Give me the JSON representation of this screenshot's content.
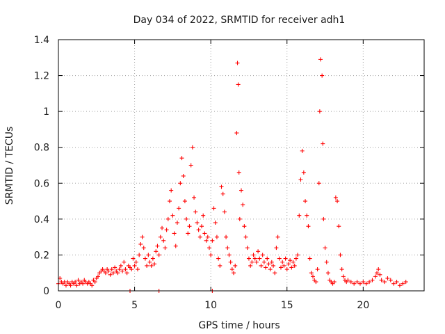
{
  "chart_data": {
    "type": "scatter",
    "title": "Day 034 of 2022, SRMTID for receiver adh1",
    "xlabel": "GPS time / hours",
    "ylabel": "SRMTID / TECUs",
    "xlim": [
      0,
      24
    ],
    "ylim": [
      0,
      1.4
    ],
    "x_ticks": [
      0,
      5,
      10,
      15,
      20
    ],
    "x_tick_labels": [
      "0",
      "5",
      "10",
      "15",
      "20"
    ],
    "y_ticks": [
      0,
      0.2,
      0.4,
      0.6,
      0.8,
      1.0,
      1.2,
      1.4
    ],
    "y_tick_labels": [
      "0",
      "0.2",
      "0.4",
      "0.6",
      "0.8",
      "1",
      "1.2",
      "1.4"
    ],
    "grid": true,
    "marker": "plus",
    "marker_color": "#ff0000",
    "series": [
      {
        "name": "SRMTID",
        "points": [
          [
            0.0,
            0.04
          ],
          [
            0.1,
            0.07
          ],
          [
            0.2,
            0.05
          ],
          [
            0.3,
            0.04
          ],
          [
            0.4,
            0.05
          ],
          [
            0.5,
            0.03
          ],
          [
            0.6,
            0.05
          ],
          [
            0.7,
            0.04
          ],
          [
            0.8,
            0.03
          ],
          [
            0.9,
            0.05
          ],
          [
            1.0,
            0.04
          ],
          [
            1.1,
            0.05
          ],
          [
            1.2,
            0.03
          ],
          [
            1.3,
            0.06
          ],
          [
            1.4,
            0.04
          ],
          [
            1.5,
            0.05
          ],
          [
            1.6,
            0.04
          ],
          [
            1.7,
            0.06
          ],
          [
            1.8,
            0.05
          ],
          [
            1.9,
            0.04
          ],
          [
            2.0,
            0.05
          ],
          [
            2.1,
            0.04
          ],
          [
            2.2,
            0.03
          ],
          [
            2.3,
            0.06
          ],
          [
            2.4,
            0.05
          ],
          [
            2.5,
            0.07
          ],
          [
            2.6,
            0.08
          ],
          [
            2.7,
            0.1
          ],
          [
            2.8,
            0.11
          ],
          [
            2.9,
            0.12
          ],
          [
            3.0,
            0.11
          ],
          [
            3.1,
            0.1
          ],
          [
            3.2,
            0.12
          ],
          [
            3.3,
            0.11
          ],
          [
            3.4,
            0.09
          ],
          [
            3.5,
            0.12
          ],
          [
            3.6,
            0.1
          ],
          [
            3.7,
            0.13
          ],
          [
            3.8,
            0.11
          ],
          [
            3.9,
            0.1
          ],
          [
            4.0,
            0.12
          ],
          [
            4.1,
            0.14
          ],
          [
            4.2,
            0.11
          ],
          [
            4.3,
            0.16
          ],
          [
            4.4,
            0.12
          ],
          [
            4.5,
            0.1
          ],
          [
            4.6,
            0.14
          ],
          [
            4.7,
            0.13
          ],
          [
            4.8,
            0.12
          ],
          [
            4.9,
            0.18
          ],
          [
            5.0,
            0.14
          ],
          [
            5.1,
            0.16
          ],
          [
            5.2,
            0.12
          ],
          [
            5.3,
            0.2
          ],
          [
            5.4,
            0.26
          ],
          [
            5.5,
            0.3
          ],
          [
            5.6,
            0.24
          ],
          [
            5.7,
            0.18
          ],
          [
            5.8,
            0.14
          ],
          [
            5.9,
            0.2
          ],
          [
            6.0,
            0.16
          ],
          [
            6.1,
            0.14
          ],
          [
            6.2,
            0.18
          ],
          [
            6.3,
            0.15
          ],
          [
            6.4,
            0.22
          ],
          [
            6.5,
            0.25
          ],
          [
            6.6,
            0.2
          ],
          [
            6.7,
            0.3
          ],
          [
            6.8,
            0.35
          ],
          [
            6.9,
            0.28
          ],
          [
            7.0,
            0.24
          ],
          [
            7.1,
            0.34
          ],
          [
            7.2,
            0.4
          ],
          [
            7.3,
            0.5
          ],
          [
            7.4,
            0.56
          ],
          [
            7.5,
            0.42
          ],
          [
            7.6,
            0.32
          ],
          [
            7.7,
            0.25
          ],
          [
            7.8,
            0.38
          ],
          [
            7.9,
            0.46
          ],
          [
            8.0,
            0.6
          ],
          [
            8.1,
            0.74
          ],
          [
            8.2,
            0.64
          ],
          [
            8.3,
            0.5
          ],
          [
            8.4,
            0.4
          ],
          [
            8.5,
            0.32
          ],
          [
            8.6,
            0.36
          ],
          [
            8.7,
            0.7
          ],
          [
            8.8,
            0.8
          ],
          [
            8.9,
            0.52
          ],
          [
            9.0,
            0.44
          ],
          [
            9.1,
            0.38
          ],
          [
            9.2,
            0.34
          ],
          [
            9.3,
            0.3
          ],
          [
            9.4,
            0.36
          ],
          [
            9.5,
            0.42
          ],
          [
            9.6,
            0.32
          ],
          [
            9.7,
            0.28
          ],
          [
            9.8,
            0.3
          ],
          [
            9.9,
            0.24
          ],
          [
            10.0,
            0.2
          ],
          [
            10.1,
            0.28
          ],
          [
            10.2,
            0.46
          ],
          [
            10.3,
            0.38
          ],
          [
            10.4,
            0.3
          ],
          [
            10.5,
            0.18
          ],
          [
            10.6,
            0.14
          ],
          [
            10.7,
            0.58
          ],
          [
            10.8,
            0.54
          ],
          [
            10.9,
            0.44
          ],
          [
            11.0,
            0.3
          ],
          [
            11.1,
            0.24
          ],
          [
            11.2,
            0.2
          ],
          [
            11.3,
            0.16
          ],
          [
            11.4,
            0.12
          ],
          [
            11.5,
            0.1
          ],
          [
            11.6,
            0.14
          ],
          [
            11.7,
            0.88
          ],
          [
            11.75,
            1.27
          ],
          [
            11.8,
            1.15
          ],
          [
            11.85,
            0.66
          ],
          [
            11.9,
            0.4
          ],
          [
            12.0,
            0.56
          ],
          [
            12.1,
            0.48
          ],
          [
            12.2,
            0.36
          ],
          [
            12.3,
            0.3
          ],
          [
            12.4,
            0.24
          ],
          [
            12.5,
            0.18
          ],
          [
            12.6,
            0.14
          ],
          [
            12.7,
            0.16
          ],
          [
            12.8,
            0.2
          ],
          [
            12.9,
            0.18
          ],
          [
            13.0,
            0.16
          ],
          [
            13.1,
            0.22
          ],
          [
            13.2,
            0.18
          ],
          [
            13.3,
            0.14
          ],
          [
            13.4,
            0.2
          ],
          [
            13.5,
            0.16
          ],
          [
            13.6,
            0.13
          ],
          [
            13.7,
            0.18
          ],
          [
            13.8,
            0.15
          ],
          [
            13.9,
            0.12
          ],
          [
            14.0,
            0.16
          ],
          [
            14.1,
            0.14
          ],
          [
            14.2,
            0.1
          ],
          [
            14.3,
            0.24
          ],
          [
            14.4,
            0.3
          ],
          [
            14.5,
            0.18
          ],
          [
            14.6,
            0.13
          ],
          [
            14.7,
            0.16
          ],
          [
            14.8,
            0.14
          ],
          [
            14.9,
            0.18
          ],
          [
            15.0,
            0.12
          ],
          [
            15.1,
            0.15
          ],
          [
            15.2,
            0.17
          ],
          [
            15.3,
            0.13
          ],
          [
            15.4,
            0.16
          ],
          [
            15.5,
            0.14
          ],
          [
            15.6,
            0.18
          ],
          [
            15.7,
            0.2
          ],
          [
            15.8,
            0.42
          ],
          [
            15.9,
            0.62
          ],
          [
            16.0,
            0.78
          ],
          [
            16.1,
            0.66
          ],
          [
            16.2,
            0.5
          ],
          [
            16.3,
            0.42
          ],
          [
            16.4,
            0.36
          ],
          [
            16.5,
            0.18
          ],
          [
            16.6,
            0.1
          ],
          [
            16.7,
            0.08
          ],
          [
            16.8,
            0.06
          ],
          [
            16.9,
            0.05
          ],
          [
            17.0,
            0.12
          ],
          [
            17.1,
            0.6
          ],
          [
            17.15,
            1.0
          ],
          [
            17.2,
            1.29
          ],
          [
            17.3,
            1.2
          ],
          [
            17.35,
            0.82
          ],
          [
            17.4,
            0.4
          ],
          [
            17.5,
            0.24
          ],
          [
            17.6,
            0.16
          ],
          [
            17.7,
            0.1
          ],
          [
            17.8,
            0.06
          ],
          [
            17.9,
            0.05
          ],
          [
            18.0,
            0.04
          ],
          [
            18.1,
            0.05
          ],
          [
            18.2,
            0.52
          ],
          [
            18.3,
            0.5
          ],
          [
            18.4,
            0.36
          ],
          [
            18.5,
            0.2
          ],
          [
            18.6,
            0.12
          ],
          [
            18.7,
            0.08
          ],
          [
            18.8,
            0.06
          ],
          [
            18.9,
            0.05
          ],
          [
            19.0,
            0.06
          ],
          [
            19.2,
            0.05
          ],
          [
            19.4,
            0.04
          ],
          [
            19.6,
            0.05
          ],
          [
            19.8,
            0.04
          ],
          [
            20.0,
            0.05
          ],
          [
            20.2,
            0.04
          ],
          [
            20.4,
            0.05
          ],
          [
            20.6,
            0.06
          ],
          [
            20.8,
            0.08
          ],
          [
            20.9,
            0.1
          ],
          [
            21.0,
            0.12
          ],
          [
            21.1,
            0.09
          ],
          [
            21.2,
            0.06
          ],
          [
            21.4,
            0.05
          ],
          [
            21.6,
            0.07
          ],
          [
            21.8,
            0.06
          ],
          [
            22.0,
            0.04
          ],
          [
            22.2,
            0.05
          ],
          [
            22.4,
            0.03
          ],
          [
            22.6,
            0.04
          ],
          [
            22.8,
            0.05
          ],
          [
            4.7,
            0.0
          ],
          [
            6.6,
            0.0
          ],
          [
            10.1,
            0.0
          ]
        ]
      }
    ]
  }
}
